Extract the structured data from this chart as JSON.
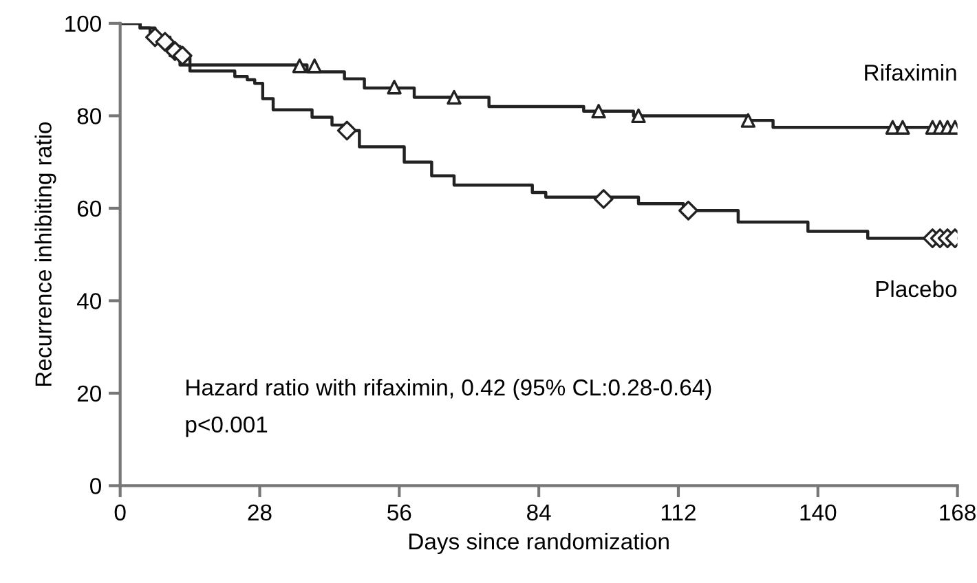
{
  "chart_data": {
    "type": "step",
    "xlabel": "Days since randomization",
    "ylabel": "Recurrence inhibiting ratio",
    "xlim": [
      0,
      168
    ],
    "ylim": [
      0,
      100
    ],
    "xticks": [
      0,
      28,
      56,
      84,
      112,
      140,
      168
    ],
    "yticks": [
      0,
      20,
      40,
      60,
      80,
      100
    ],
    "grid": false,
    "legend": false,
    "series": [
      {
        "name": "Rifaximin",
        "color": "#222222",
        "x": [
          0,
          4,
          6,
          8,
          10,
          12,
          37.5,
          45,
          49,
          59,
          74,
          93,
          103,
          126,
          131,
          168
        ],
        "values": [
          100,
          99,
          97,
          96,
          93,
          91,
          89.5,
          88,
          86,
          84,
          82,
          81,
          80,
          79,
          77.5,
          77.5
        ]
      },
      {
        "name": "Placebo",
        "color": "#222222",
        "x": [
          0,
          4,
          7,
          10,
          12,
          14,
          23,
          25.5,
          27,
          28.6,
          30.7,
          38.5,
          42.5,
          45,
          48,
          57,
          62.5,
          67,
          82.7,
          85.4,
          104,
          113,
          124,
          138,
          150,
          168
        ],
        "values": [
          100,
          99,
          97,
          95,
          93,
          89.7,
          88.5,
          87.8,
          87,
          83.7,
          81.3,
          79.7,
          78,
          76.8,
          73.3,
          70,
          67,
          65,
          63.4,
          62.4,
          61,
          59.5,
          57,
          55,
          53.5,
          53.5
        ]
      },
      {
        "type": "scatter",
        "marker": "triangle",
        "color": "#222222",
        "x": [
          36,
          39,
          55,
          67,
          96,
          104,
          126,
          155,
          157,
          163,
          164.5,
          166,
          167.5
        ],
        "values": [
          90.8,
          90.8,
          86.2,
          84,
          81,
          80,
          79,
          77.5,
          77.5,
          77.5,
          77.5,
          77.5,
          77.5
        ]
      },
      {
        "type": "scatter",
        "marker": "diamond",
        "color": "#222222",
        "x": [
          7,
          9,
          11,
          12.5,
          45.5,
          97,
          114,
          163,
          164.5,
          166,
          167.5
        ],
        "values": [
          97,
          96,
          94,
          93,
          76.8,
          62,
          59.5,
          53.5,
          53.5,
          53.5,
          53.5
        ]
      }
    ],
    "annotations": [
      "Hazard ratio with rifaximin, 0.42 (95% CL:0.28-0.64)",
      "p<0.001"
    ]
  }
}
